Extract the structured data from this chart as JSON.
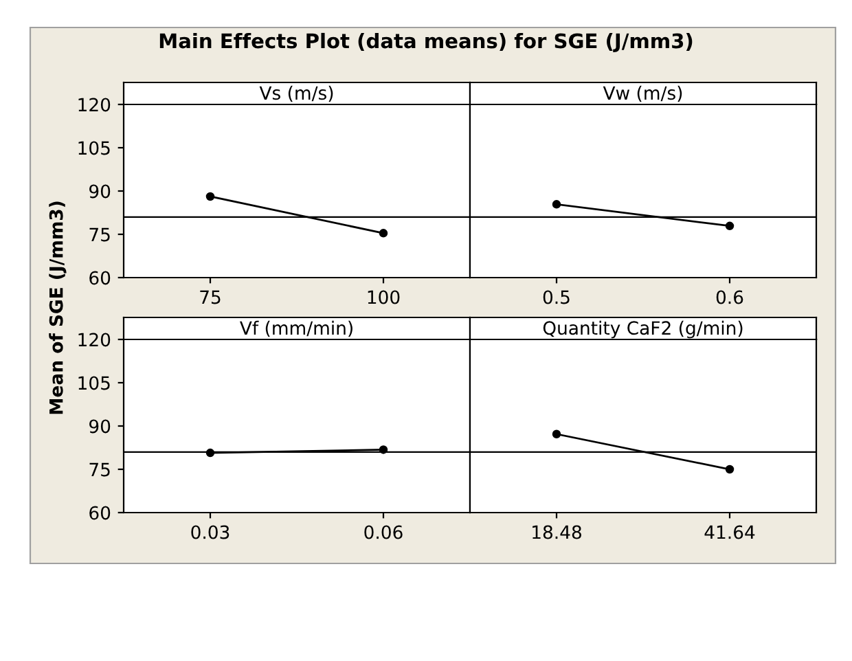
{
  "chart_data": [
    {
      "type": "line",
      "title": "Vs (m/s)",
      "ylabel": "Mean of SGE (J/mm3)",
      "annotations": [
        "Main Effects Plot (data means) for SGE (J/mm3)"
      ],
      "categories": [
        "75",
        "100"
      ],
      "series": [
        {
          "color": "#000000",
          "values": [
            88.1,
            75.4
          ]
        }
      ],
      "ylim": [
        60,
        120
      ],
      "yticks": [
        60,
        75,
        90,
        105,
        120
      ],
      "ref_lines": [
        {
          "axis": "y",
          "value": 81,
          "color": "#000000"
        }
      ],
      "marker": "circle",
      "line_style": "solid",
      "grid": false
    },
    {
      "type": "line",
      "title": "Vw (m/s)",
      "categories": [
        "0.5",
        "0.6"
      ],
      "series": [
        {
          "color": "#000000",
          "values": [
            85.4,
            77.9
          ]
        }
      ],
      "ylim": [
        60,
        120
      ],
      "yticks": [
        60,
        75,
        90,
        105,
        120
      ],
      "ref_lines": [
        {
          "axis": "y",
          "value": 81,
          "color": "#000000"
        }
      ],
      "marker": "circle",
      "line_style": "solid",
      "grid": false,
      "tick_labels": "x"
    },
    {
      "type": "line",
      "title": "Vf (mm/min)",
      "categories": [
        "0.03",
        "0.06"
      ],
      "series": [
        {
          "color": "#000000",
          "values": [
            80.7,
            81.8
          ]
        }
      ],
      "ylim": [
        60,
        120
      ],
      "yticks": [
        60,
        75,
        90,
        105,
        120
      ],
      "ref_lines": [
        {
          "axis": "y",
          "value": 81,
          "color": "#000000"
        }
      ],
      "marker": "circle",
      "line_style": "solid",
      "grid": false
    },
    {
      "type": "line",
      "title": "Quantity CaF2 (g/min)",
      "categories": [
        "18.48",
        "41.64"
      ],
      "series": [
        {
          "color": "#000000",
          "values": [
            87.2,
            75.0
          ]
        }
      ],
      "ylim": [
        60,
        120
      ],
      "yticks": [
        60,
        75,
        90,
        105,
        120
      ],
      "ref_lines": [
        {
          "axis": "y",
          "value": 81,
          "color": "#000000"
        }
      ],
      "marker": "circle",
      "line_style": "solid",
      "grid": false,
      "tick_labels": "x"
    }
  ]
}
